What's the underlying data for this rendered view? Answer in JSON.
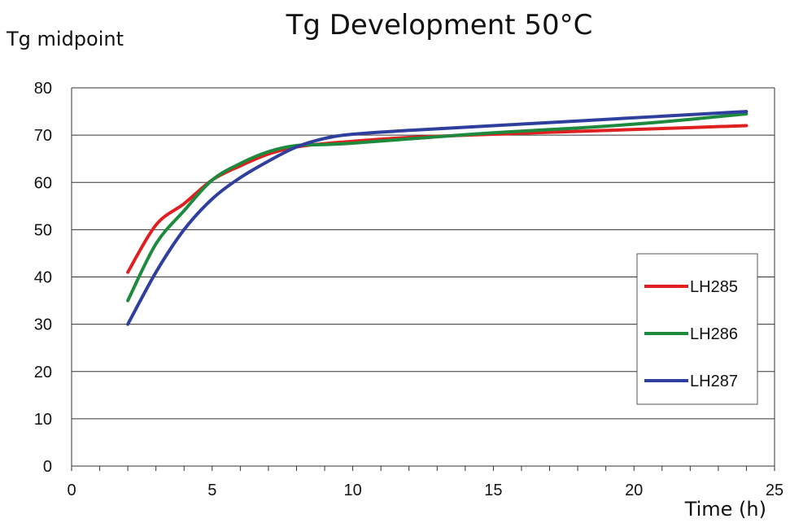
{
  "chart_data": {
    "type": "line",
    "title": "Tg Development 50°C",
    "ylabel": "Tg midpoint",
    "xlabel": "Time (h)",
    "xlim": [
      0,
      25
    ],
    "ylim": [
      0,
      80
    ],
    "x_ticks": [
      0,
      5,
      10,
      15,
      20,
      25
    ],
    "y_ticks": [
      0,
      10,
      20,
      30,
      40,
      50,
      60,
      70,
      80
    ],
    "grid": "horizontal",
    "legend_position": "right",
    "series": [
      {
        "name": "LH285",
        "color": "#e02020",
        "points": [
          [
            2,
            41
          ],
          [
            3,
            51
          ],
          [
            4,
            55.5
          ],
          [
            5,
            60.5
          ],
          [
            6,
            63.5
          ],
          [
            7,
            66
          ],
          [
            8,
            67.5
          ],
          [
            9,
            68.2
          ],
          [
            10,
            68.7
          ],
          [
            12,
            69.5
          ],
          [
            15,
            70.2
          ],
          [
            18,
            70.8
          ],
          [
            21,
            71.4
          ],
          [
            24,
            72
          ]
        ]
      },
      {
        "name": "LH286",
        "color": "#1e8a3e",
        "points": [
          [
            2,
            35
          ],
          [
            3,
            47
          ],
          [
            4,
            54
          ],
          [
            5,
            60.5
          ],
          [
            6,
            64
          ],
          [
            7,
            66.5
          ],
          [
            8,
            67.8
          ],
          [
            9,
            68
          ],
          [
            10,
            68.3
          ],
          [
            12,
            69.2
          ],
          [
            15,
            70.5
          ],
          [
            18,
            71.5
          ],
          [
            21,
            72.8
          ],
          [
            24,
            74.5
          ]
        ]
      },
      {
        "name": "LH287",
        "color": "#2e3f9e",
        "points": [
          [
            2,
            30
          ],
          [
            3,
            41
          ],
          [
            4,
            50
          ],
          [
            5,
            56.5
          ],
          [
            6,
            61
          ],
          [
            7,
            64.5
          ],
          [
            8,
            67.5
          ],
          [
            9,
            69.3
          ],
          [
            10,
            70.2
          ],
          [
            12,
            71
          ],
          [
            15,
            72
          ],
          [
            18,
            73
          ],
          [
            21,
            74
          ],
          [
            24,
            75
          ]
        ]
      }
    ]
  }
}
